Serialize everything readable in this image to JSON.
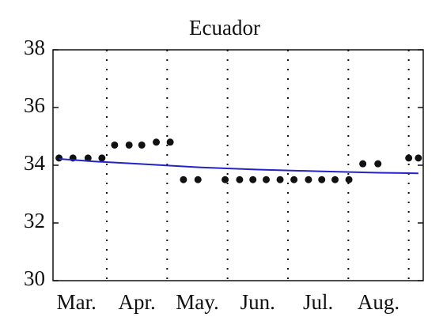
{
  "chart_data": {
    "type": "scatter",
    "title": "Ecuador",
    "xlim": [
      3.11,
      9.24
    ],
    "xticks": [
      {
        "value": 3.5,
        "label": "Mar."
      },
      {
        "value": 4.5,
        "label": "Apr."
      },
      {
        "value": 5.5,
        "label": "May."
      },
      {
        "value": 6.5,
        "label": "Jun."
      },
      {
        "value": 7.5,
        "label": "Jul."
      },
      {
        "value": 8.5,
        "label": "Aug."
      }
    ],
    "xgrid": [
      4,
      5,
      6,
      7,
      8,
      9
    ],
    "ylim": [
      30,
      38
    ],
    "yticks": [
      30,
      32,
      34,
      36,
      38
    ],
    "series": [
      {
        "type": "scatter",
        "color": "#111111",
        "x": [
          3.21,
          3.44,
          3.69,
          3.92,
          4.13,
          4.37,
          4.58,
          4.82,
          5.05,
          5.27,
          5.51,
          5.96,
          6.2,
          6.42,
          6.64,
          6.87,
          7.1,
          7.34,
          7.56,
          7.78,
          8.01,
          8.24,
          8.49,
          9.0,
          9.16
        ],
        "values": [
          34.25,
          34.25,
          34.25,
          34.25,
          34.7,
          34.7,
          34.7,
          34.8,
          34.8,
          33.5,
          33.5,
          33.5,
          33.5,
          33.5,
          33.5,
          33.5,
          33.5,
          33.5,
          33.5,
          33.5,
          33.5,
          34.05,
          34.05,
          34.25,
          34.25
        ]
      },
      {
        "type": "line",
        "color": "#2323c8",
        "x": [
          3.21,
          3.8,
          4.5,
          5.5,
          6.5,
          7.5,
          8.5,
          9.16
        ],
        "values": [
          34.22,
          34.13,
          34.05,
          33.93,
          33.85,
          33.79,
          33.74,
          33.72
        ]
      }
    ]
  }
}
